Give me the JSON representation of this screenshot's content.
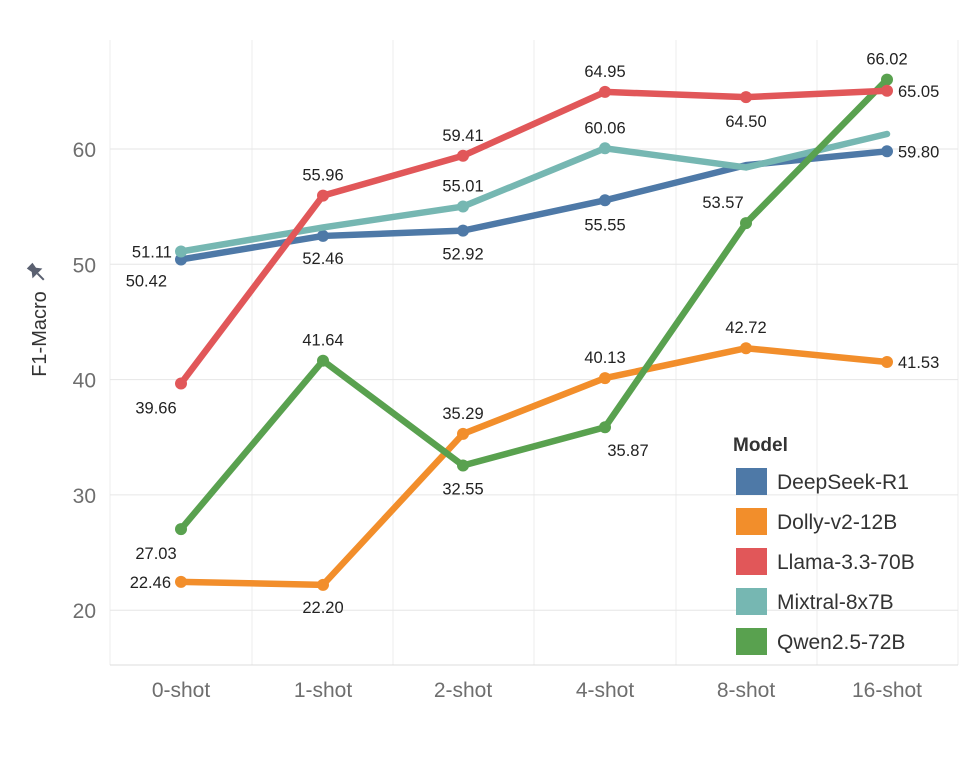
{
  "chart_data": {
    "type": "line",
    "categories": [
      "0-shot",
      "1-shot",
      "2-shot",
      "4-shot",
      "8-shot",
      "16-shot"
    ],
    "ylabel": "F1-Macro",
    "ylim": [
      15,
      70
    ],
    "yticks": [
      20,
      30,
      40,
      50,
      60
    ],
    "grid": true,
    "legend": {
      "title": "Model",
      "position": "bottom-right"
    },
    "series": [
      {
        "name": "DeepSeek-R1",
        "color": "#4e79a7",
        "values": [
          50.42,
          52.46,
          52.92,
          55.55,
          58.6,
          59.8
        ],
        "labels": [
          "50.42",
          "52.46",
          "52.92",
          "55.55",
          "",
          "59.80"
        ]
      },
      {
        "name": "Dolly-v2-12B",
        "color": "#f28e2b",
        "values": [
          22.46,
          22.2,
          35.29,
          40.13,
          42.72,
          41.53
        ],
        "labels": [
          "22.46",
          "22.20",
          "35.29",
          "40.13",
          "42.72",
          "41.53"
        ]
      },
      {
        "name": "Llama-3.3-70B",
        "color": "#e15759",
        "values": [
          39.66,
          55.96,
          59.41,
          64.95,
          64.5,
          65.05
        ],
        "labels": [
          "39.66",
          "55.96",
          "59.41",
          "64.95",
          "64.50",
          "65.05"
        ]
      },
      {
        "name": "Mixtral-8x7B",
        "color": "#76b7b2",
        "values": [
          51.11,
          53.2,
          55.01,
          60.06,
          58.4,
          61.3
        ],
        "labels": [
          "51.11",
          "",
          "55.01",
          "60.06",
          "",
          ""
        ]
      },
      {
        "name": "Qwen2.5-72B",
        "color": "#59a14f",
        "values": [
          27.03,
          41.64,
          32.55,
          35.87,
          53.57,
          66.02
        ],
        "labels": [
          "27.03",
          "41.64",
          "32.55",
          "35.87",
          "53.57",
          "66.02"
        ]
      }
    ]
  },
  "icons": {
    "ylabel_icon": "pin-icon"
  }
}
